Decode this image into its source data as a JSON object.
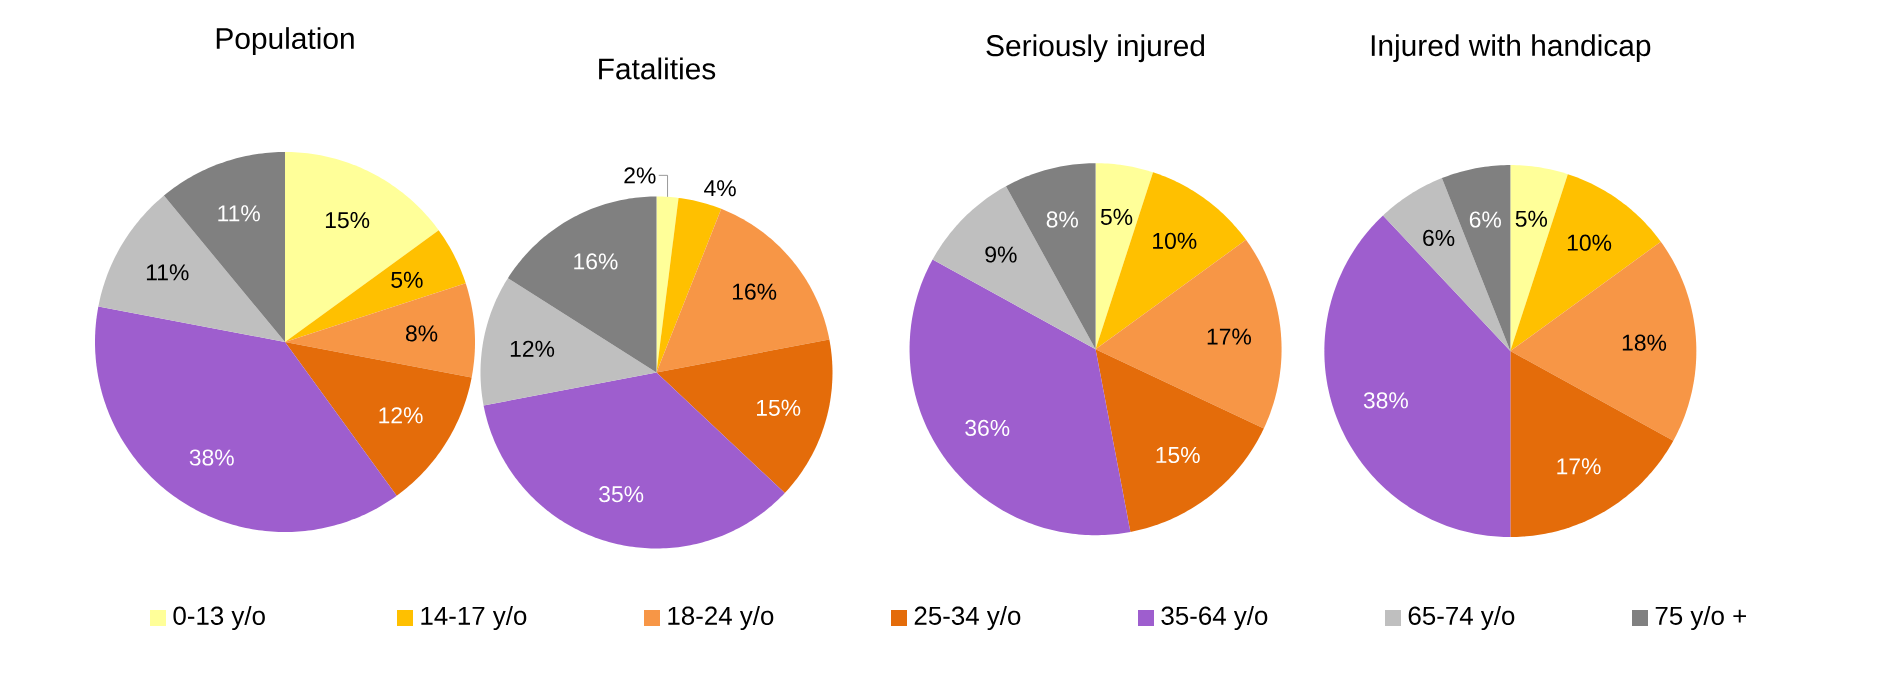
{
  "chart_data": [
    {
      "type": "pie",
      "title": "Population",
      "legend": "bottom",
      "categories": [
        "0-13 y/o",
        "14-17 y/o",
        "18-24 y/o",
        "25-34 y/o",
        "35-64 y/o",
        "65-74 y/o",
        "75 y/o +"
      ],
      "values": [
        15,
        5,
        8,
        12,
        38,
        11,
        11
      ],
      "value_labels": [
        "15%",
        "5%",
        "8%",
        "12%",
        "38%",
        "11%",
        "11%"
      ],
      "colors": [
        "#ffff99",
        "#ffc000",
        "#f79646",
        "#e46c0a",
        "#9e5ece",
        "#bfbfbf",
        "#808080"
      ]
    },
    {
      "type": "pie",
      "title": "Fatalities",
      "values": [
        2,
        4,
        16,
        15,
        35,
        12,
        16
      ],
      "value_labels": [
        "2%",
        "4%",
        "16%",
        "15%",
        "35%",
        "12%",
        "16%"
      ],
      "colors": [
        "#ffff99",
        "#ffc000",
        "#f79646",
        "#e46c0a",
        "#9e5ece",
        "#bfbfbf",
        "#808080"
      ]
    },
    {
      "type": "pie",
      "title": "Seriously injured",
      "values": [
        5,
        10,
        17,
        15,
        36,
        9,
        8
      ],
      "value_labels": [
        "5%",
        "10%",
        "17%",
        "15%",
        "36%",
        "9%",
        "8%"
      ],
      "colors": [
        "#ffff99",
        "#ffc000",
        "#f79646",
        "#e46c0a",
        "#9e5ece",
        "#bfbfbf",
        "#808080"
      ]
    },
    {
      "type": "pie",
      "title": "Injured with handicap",
      "values": [
        5,
        10,
        18,
        17,
        38,
        6,
        6
      ],
      "value_labels": [
        "5%",
        "10%",
        "18%",
        "17%",
        "38%",
        "6%",
        "6%"
      ],
      "colors": [
        "#ffff99",
        "#ffc000",
        "#f79646",
        "#e46c0a",
        "#9e5ece",
        "#bfbfbf",
        "#808080"
      ]
    }
  ]
}
